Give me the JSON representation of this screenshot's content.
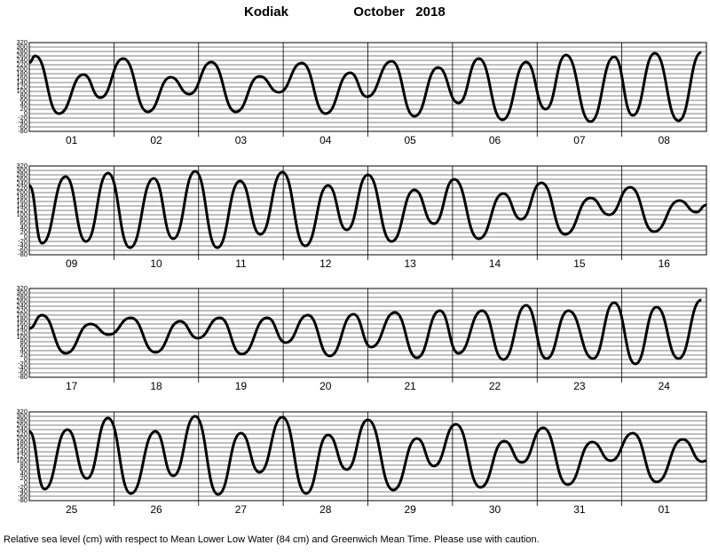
{
  "title": "Kodiak",
  "period": "October   2018",
  "note": "Relative sea level (cm) with respect to Mean Lower Low Water (84 cm) and Greenwich Mean Time. Please use with caution.",
  "chart_data": [
    {
      "type": "line",
      "color": "#000000",
      "xlim": [
        0,
        8
      ],
      "ylim": [
        -80,
        320
      ],
      "yticks": [
        -80,
        -60,
        -40,
        -20,
        0,
        20,
        40,
        60,
        80,
        100,
        120,
        140,
        160,
        180,
        200,
        220,
        240,
        260,
        280,
        300,
        320
      ],
      "categories": [
        "01",
        "02",
        "03",
        "04",
        "05",
        "06",
        "07",
        "08"
      ],
      "x": [
        0,
        0.07,
        0.35,
        0.64,
        0.84,
        1.11,
        1.4,
        1.67,
        1.89,
        2.15,
        2.44,
        2.72,
        2.95,
        3.22,
        3.5,
        3.79,
        3.99,
        4.28,
        4.55,
        4.83,
        5.07,
        5.31,
        5.59,
        5.87,
        6.1,
        6.34,
        6.63,
        6.91,
        7.13,
        7.39,
        7.67,
        7.94
      ],
      "values": [
        230,
        260,
        0,
        176,
        72,
        248,
        8,
        164,
        88,
        232,
        8,
        168,
        96,
        228,
        0,
        184,
        76,
        236,
        -12,
        208,
        48,
        248,
        -28,
        232,
        20,
        264,
        -36,
        256,
        -8,
        272,
        -32,
        276
      ]
    },
    {
      "type": "line",
      "color": "#000000",
      "xlim": [
        0,
        8
      ],
      "ylim": [
        -80,
        320
      ],
      "yticks": [
        -80,
        -60,
        -40,
        -20,
        0,
        20,
        40,
        60,
        80,
        100,
        120,
        140,
        160,
        180,
        200,
        220,
        240,
        260,
        280,
        300,
        320
      ],
      "categories": [
        "09",
        "10",
        "11",
        "12",
        "13",
        "14",
        "15",
        "16"
      ],
      "x": [
        0,
        0.15,
        0.43,
        0.67,
        0.93,
        1.19,
        1.47,
        1.7,
        1.96,
        2.22,
        2.49,
        2.73,
        2.99,
        3.26,
        3.53,
        3.75,
        4.0,
        4.28,
        4.55,
        4.78,
        5.02,
        5.31,
        5.6,
        5.81,
        6.05,
        6.33,
        6.63,
        6.85,
        7.1,
        7.38,
        7.68,
        7.88,
        8
      ],
      "values": [
        232,
        -28,
        272,
        -20,
        288,
        -48,
        264,
        -8,
        296,
        -48,
        252,
        12,
        292,
        -40,
        232,
        32,
        280,
        -20,
        212,
        60,
        260,
        -8,
        196,
        80,
        244,
        12,
        176,
        100,
        224,
        24,
        164,
        112,
        144
      ]
    },
    {
      "type": "line",
      "color": "#000000",
      "xlim": [
        0,
        8
      ],
      "ylim": [
        -80,
        320
      ],
      "yticks": [
        -80,
        -60,
        -40,
        -20,
        0,
        20,
        40,
        60,
        80,
        100,
        120,
        140,
        160,
        180,
        200,
        220,
        240,
        260,
        280,
        300,
        320
      ],
      "categories": [
        "17",
        "18",
        "19",
        "20",
        "21",
        "22",
        "23",
        "24"
      ],
      "x": [
        0,
        0.15,
        0.43,
        0.72,
        0.94,
        1.2,
        1.49,
        1.78,
        1.99,
        2.25,
        2.51,
        2.81,
        3.03,
        3.29,
        3.55,
        3.83,
        4.04,
        4.32,
        4.58,
        4.85,
        5.07,
        5.35,
        5.6,
        5.87,
        6.11,
        6.37,
        6.66,
        6.91,
        7.16,
        7.41,
        7.67,
        7.94
      ],
      "values": [
        140,
        200,
        28,
        160,
        112,
        188,
        32,
        172,
        96,
        188,
        24,
        188,
        76,
        200,
        16,
        204,
        56,
        212,
        8,
        220,
        28,
        220,
        0,
        244,
        4,
        220,
        4,
        256,
        -20,
        236,
        4,
        268
      ]
    },
    {
      "type": "line",
      "color": "#000000",
      "xlim": [
        0,
        8
      ],
      "ylim": [
        -80,
        320
      ],
      "yticks": [
        -80,
        -60,
        -40,
        -20,
        0,
        20,
        40,
        60,
        80,
        100,
        120,
        140,
        160,
        180,
        200,
        220,
        240,
        260,
        280,
        300,
        320
      ],
      "categories": [
        "25",
        "26",
        "27",
        "28",
        "29",
        "30",
        "31",
        "01"
      ],
      "x": [
        0,
        0.18,
        0.45,
        0.68,
        0.93,
        1.2,
        1.49,
        1.7,
        1.96,
        2.23,
        2.5,
        2.72,
        2.99,
        3.27,
        3.53,
        3.75,
        4.0,
        4.3,
        4.58,
        4.78,
        5.04,
        5.33,
        5.61,
        5.82,
        6.07,
        6.36,
        6.65,
        6.87,
        7.13,
        7.41,
        7.72,
        7.95,
        8
      ],
      "values": [
        232,
        -28,
        240,
        20,
        292,
        -48,
        232,
        32,
        300,
        -52,
        224,
        48,
        296,
        -48,
        216,
        60,
        284,
        -32,
        200,
        76,
        264,
        -20,
        188,
        92,
        248,
        -8,
        184,
        100,
        224,
        4,
        196,
        96,
        100
      ]
    }
  ]
}
